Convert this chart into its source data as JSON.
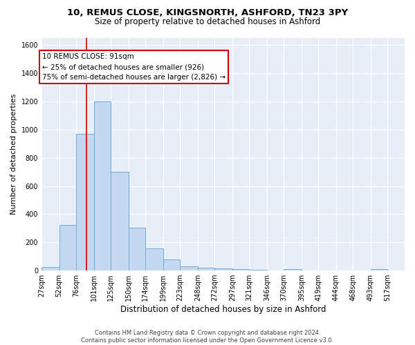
{
  "title1": "10, REMUS CLOSE, KINGSNORTH, ASHFORD, TN23 3PY",
  "title2": "Size of property relative to detached houses in Ashford",
  "xlabel": "Distribution of detached houses by size in Ashford",
  "ylabel": "Number of detached properties",
  "footer1": "Contains HM Land Registry data © Crown copyright and database right 2024.",
  "footer2": "Contains public sector information licensed under the Open Government Licence v3.0.",
  "annotation_title": "10 REMUS CLOSE: 91sqm",
  "annotation_line1": "← 25% of detached houses are smaller (926)",
  "annotation_line2": "75% of semi-detached houses are larger (2,826) →",
  "property_line_x": 91,
  "bins": [
    27,
    52,
    76,
    101,
    125,
    150,
    174,
    199,
    223,
    248,
    272,
    297,
    321,
    346,
    370,
    395,
    419,
    444,
    468,
    493,
    517
  ],
  "values": [
    25,
    325,
    970,
    1200,
    700,
    305,
    155,
    80,
    30,
    20,
    15,
    10,
    5,
    0,
    12,
    0,
    0,
    0,
    0,
    10,
    0
  ],
  "bar_color": "#c5d8f0",
  "bar_edge_color": "#6aaed6",
  "line_color": "#cc0000",
  "bg_color": "#ffffff",
  "plot_bg_color": "#e8eef8",
  "ylim": [
    0,
    1650
  ],
  "yticks": [
    0,
    200,
    400,
    600,
    800,
    1000,
    1200,
    1400,
    1600
  ],
  "title1_fontsize": 9.5,
  "title2_fontsize": 8.5,
  "xlabel_fontsize": 8.5,
  "ylabel_fontsize": 8.0,
  "tick_fontsize": 7.0,
  "footer_fontsize": 6.0,
  "annotation_fontsize": 7.5
}
